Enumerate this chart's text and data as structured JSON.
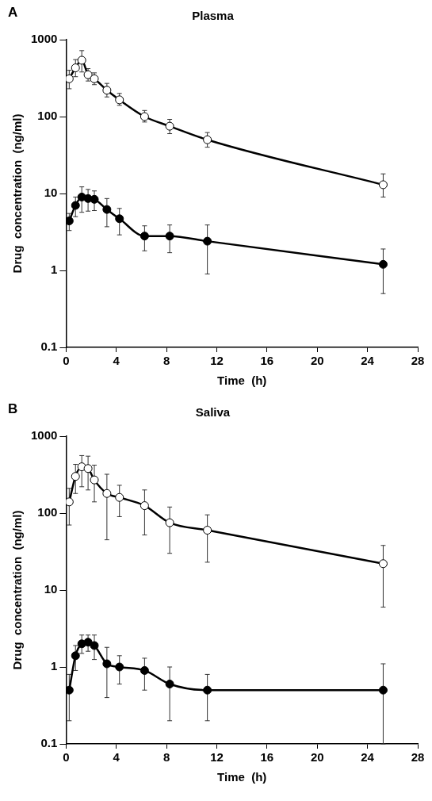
{
  "chart_data": [
    {
      "type": "line",
      "title": "Plasma",
      "annotations": [
        "A"
      ],
      "xlabel": "Time  (h)",
      "ylabel": "Drug  concentration  (ng/ml)",
      "log": "y",
      "grid": false,
      "legend": false,
      "marker": "circle",
      "line_style": "solid",
      "xlim": [
        0,
        28
      ],
      "xticks": [
        0,
        4,
        8,
        12,
        16,
        20,
        24,
        28
      ],
      "ylim": [
        0.1,
        1000
      ],
      "yticks": [
        0.1,
        1,
        10,
        100,
        1000
      ],
      "series": [
        {
          "color": "#000000",
          "x": [
            0.25,
            0.75,
            1.25,
            1.75,
            2.25,
            3.25,
            4.25,
            6.25,
            8.25,
            11.25,
            25.25
          ],
          "values": [
            310,
            430,
            540,
            350,
            310,
            220,
            165,
            100,
            75,
            50,
            13
          ],
          "errors": [
            [
              230,
              400
            ],
            [
              330,
              550
            ],
            [
              380,
              720
            ],
            [
              290,
              420
            ],
            [
              260,
              370
            ],
            [
              180,
              270
            ],
            [
              140,
              200
            ],
            [
              85,
              120
            ],
            [
              60,
              92
            ],
            [
              40,
              62
            ],
            [
              9,
              18
            ]
          ]
        },
        {
          "color": "#000000",
          "x": [
            0.25,
            0.75,
            1.25,
            1.75,
            2.25,
            3.25,
            4.25,
            6.25,
            8.25,
            11.25,
            25.25
          ],
          "values": [
            4.4,
            7,
            9,
            8.6,
            8.4,
            6.2,
            4.7,
            2.8,
            2.8,
            2.4,
            1.2
          ],
          "errors": [
            [
              3.3,
              5.5
            ],
            [
              5,
              9
            ],
            [
              5.7,
              12.2
            ],
            [
              5.9,
              11.3
            ],
            [
              6,
              10.8
            ],
            [
              3.7,
              8.6
            ],
            [
              2.9,
              6.4
            ],
            [
              1.8,
              3.8
            ],
            [
              1.7,
              3.9
            ],
            [
              0.9,
              3.9
            ],
            [
              0.5,
              1.9
            ]
          ]
        }
      ]
    },
    {
      "type": "line",
      "title": "Saliva",
      "annotations": [
        "B"
      ],
      "xlabel": "Time  (h)",
      "ylabel": "Drug  concentration  (ng/ml)",
      "log": "y",
      "grid": false,
      "legend": false,
      "marker": "circle",
      "line_style": "solid",
      "xlim": [
        0,
        28
      ],
      "xticks": [
        0,
        4,
        8,
        12,
        16,
        20,
        24,
        28
      ],
      "ylim": [
        0.1,
        1000
      ],
      "yticks": [
        0.1,
        1,
        10,
        100,
        1000
      ],
      "series": [
        {
          "color": "#000000",
          "x": [
            0.25,
            0.75,
            1.25,
            1.75,
            2.25,
            3.25,
            4.25,
            6.25,
            8.25,
            11.25,
            25.25
          ],
          "values": [
            140,
            300,
            400,
            380,
            270,
            180,
            160,
            125,
            75,
            60,
            22
          ],
          "errors": [
            [
              70,
              210
            ],
            [
              180,
              430
            ],
            [
              220,
              560
            ],
            [
              200,
              550
            ],
            [
              140,
              420
            ],
            [
              45,
              320
            ],
            [
              90,
              230
            ],
            [
              52,
              200
            ],
            [
              30,
              120
            ],
            [
              23,
              95
            ],
            [
              6,
              38
            ]
          ]
        },
        {
          "color": "#000000",
          "x": [
            0.25,
            0.75,
            1.25,
            1.75,
            2.25,
            3.25,
            4.25,
            6.25,
            8.25,
            11.25,
            25.25
          ],
          "values": [
            0.5,
            1.4,
            2.0,
            2.1,
            1.9,
            1.1,
            1.0,
            0.9,
            0.6,
            0.5,
            0.5
          ],
          "errors": [
            [
              0.2,
              0.8
            ],
            [
              0.9,
              1.9
            ],
            [
              1.5,
              2.6
            ],
            [
              1.6,
              2.6
            ],
            [
              1.25,
              2.6
            ],
            [
              0.4,
              1.8
            ],
            [
              0.6,
              1.4
            ],
            [
              0.5,
              1.3
            ],
            [
              0.2,
              1.0
            ],
            [
              0.2,
              0.8
            ],
            [
              0.1,
              1.1
            ]
          ]
        }
      ]
    }
  ]
}
